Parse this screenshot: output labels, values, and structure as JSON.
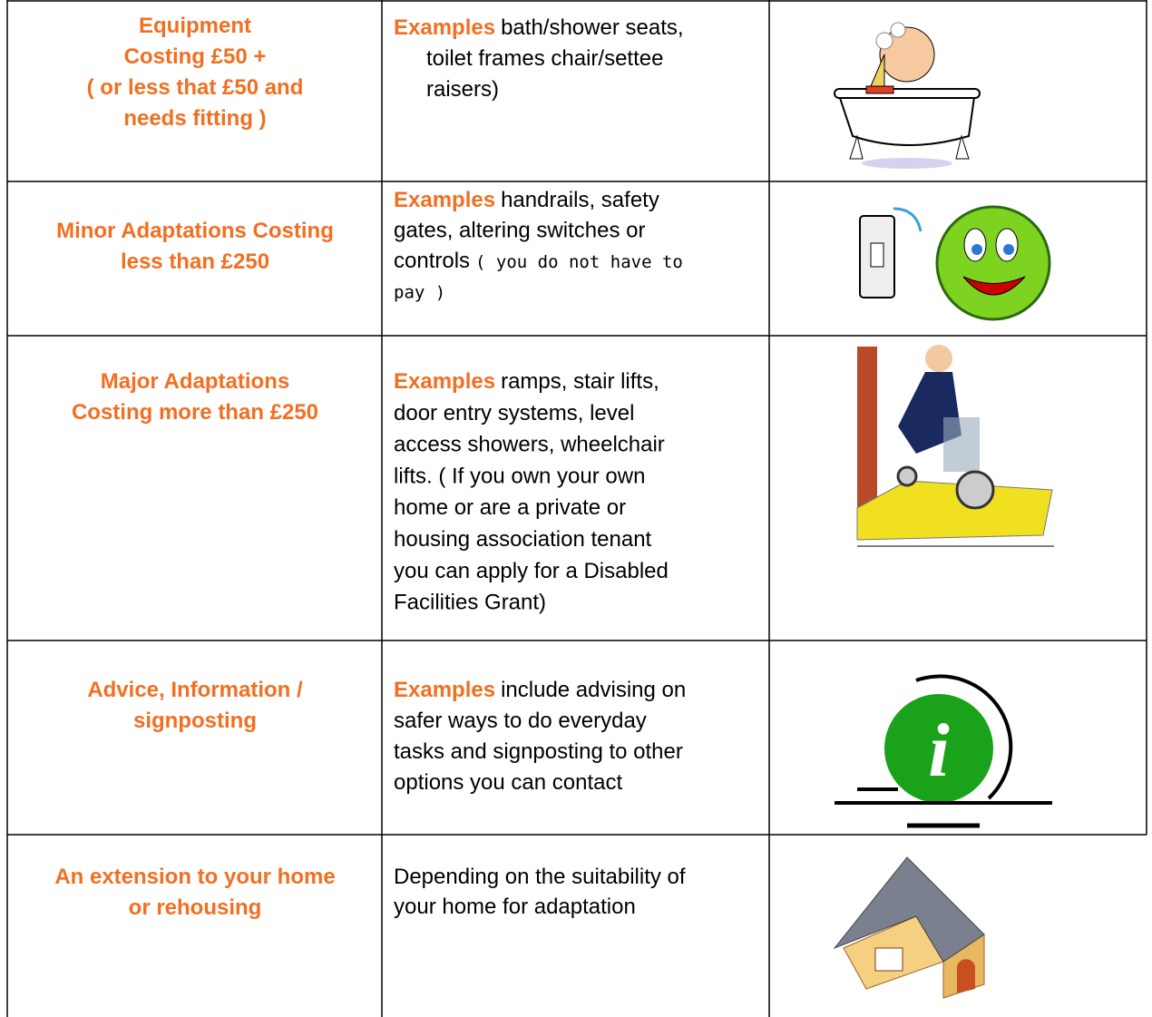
{
  "rows": [
    {
      "category": [
        "Equipment",
        "Costing £50 +",
        "( or less that £50 and",
        "needs fitting )"
      ],
      "examples": {
        "label": "Examples",
        "lines": [
          "bath/shower seats,",
          "toilet frames   chair/settee",
          "raisers)"
        ]
      }
    },
    {
      "category": [
        "Minor Adaptations Costing",
        "less than £250"
      ],
      "examples": {
        "label": "Examples",
        "lines": [
          "handrails, safety",
          "gates, altering switches or",
          "controls"
        ],
        "note": [
          "( you do not have to",
          "pay )"
        ]
      }
    },
    {
      "category": [
        "Major Adaptations",
        "Costing more than £250"
      ],
      "examples": {
        "label": "Examples",
        "lines": [
          "ramps, stair lifts,",
          "door entry systems, level",
          "access showers, wheelchair",
          "lifts. ( If you own your own",
          "home or are a private or",
          "housing association tenant",
          "you can apply for a Disabled",
          "Facilities Grant)"
        ]
      }
    },
    {
      "category": [
        "Advice, Information /",
        "signposting"
      ],
      "examples": {
        "label": "Examples",
        "lines": [
          "include advising on",
          "safer ways to do everyday",
          "tasks and signposting to other",
          "options you can contact"
        ]
      }
    },
    {
      "category": [
        "An extension to your home",
        "or rehousing"
      ],
      "examples": {
        "lines": [
          "Depending on the suitability of",
          "your home for adaptation"
        ]
      }
    }
  ]
}
